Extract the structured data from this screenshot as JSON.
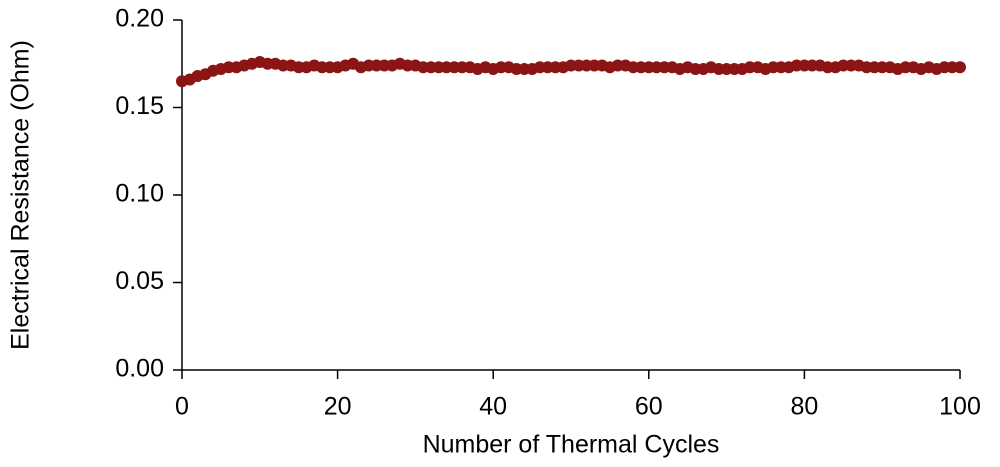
{
  "chart_data": {
    "type": "scatter",
    "x_label": "Number of Thermal Cycles",
    "y_label": "Electrical Resistance (Ohm)",
    "xlim": [
      0,
      100
    ],
    "xticks": [
      0,
      20,
      40,
      60,
      80,
      100
    ],
    "ylim": [
      0,
      0.2
    ],
    "yticks": [
      {
        "value": 0,
        "label": "0.00"
      },
      0.05,
      {
        "value": 0.1,
        "label": "0.10"
      },
      0.15,
      {
        "value": 0.2,
        "label": "0.20"
      }
    ],
    "series": [
      {
        "color": "#8b1414",
        "x": [
          0,
          1,
          2,
          3,
          4,
          5,
          6,
          7,
          8,
          9,
          10,
          11,
          12,
          13,
          14,
          15,
          16,
          17,
          18,
          19,
          20,
          21,
          22,
          23,
          24,
          25,
          26,
          27,
          28,
          29,
          30,
          31,
          32,
          33,
          34,
          35,
          36,
          37,
          38,
          39,
          40,
          41,
          42,
          43,
          44,
          45,
          46,
          47,
          48,
          49,
          50,
          51,
          52,
          53,
          54,
          55,
          56,
          57,
          58,
          59,
          60,
          61,
          62,
          63,
          64,
          65,
          66,
          67,
          68,
          69,
          70,
          71,
          72,
          73,
          74,
          75,
          76,
          77,
          78,
          79,
          80,
          81,
          82,
          83,
          84,
          85,
          86,
          87,
          88,
          89,
          90,
          91,
          92,
          93,
          94,
          95,
          96,
          97,
          98,
          99,
          100
        ],
        "values": [
          0.165,
          0.166,
          0.168,
          0.169,
          0.171,
          0.172,
          0.173,
          0.173,
          0.174,
          0.175,
          0.176,
          0.175,
          0.175,
          0.174,
          0.174,
          0.173,
          0.173,
          0.174,
          0.173,
          0.173,
          0.173,
          0.174,
          0.175,
          0.173,
          0.174,
          0.174,
          0.174,
          0.174,
          0.175,
          0.174,
          0.174,
          0.173,
          0.173,
          0.173,
          0.173,
          0.173,
          0.173,
          0.173,
          0.172,
          0.173,
          0.172,
          0.173,
          0.173,
          0.172,
          0.172,
          0.172,
          0.173,
          0.173,
          0.173,
          0.173,
          0.174,
          0.174,
          0.174,
          0.174,
          0.174,
          0.173,
          0.174,
          0.174,
          0.173,
          0.173,
          0.173,
          0.173,
          0.173,
          0.173,
          0.172,
          0.173,
          0.172,
          0.172,
          0.173,
          0.172,
          0.172,
          0.172,
          0.172,
          0.173,
          0.173,
          0.172,
          0.173,
          0.173,
          0.173,
          0.174,
          0.174,
          0.174,
          0.174,
          0.173,
          0.173,
          0.174,
          0.174,
          0.174,
          0.173,
          0.173,
          0.173,
          0.173,
          0.172,
          0.173,
          0.173,
          0.172,
          0.173,
          0.172,
          0.173,
          0.173,
          0.173
        ]
      }
    ]
  }
}
